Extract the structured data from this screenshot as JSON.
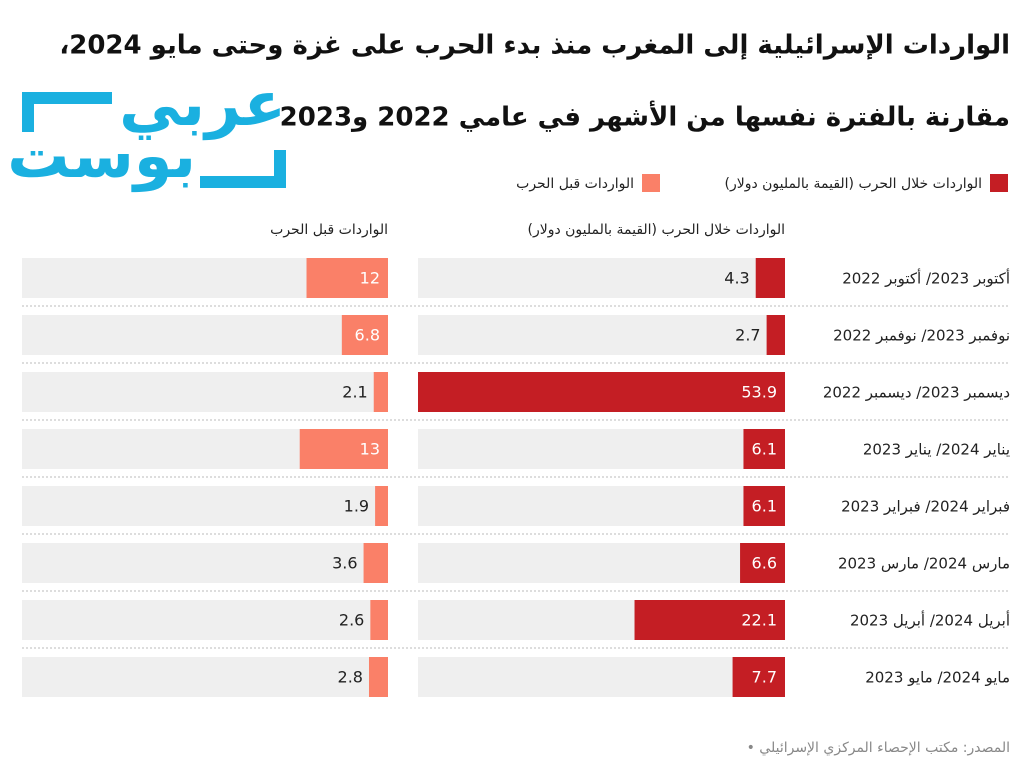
{
  "chart_data": {
    "type": "bar",
    "title": [
      "الواردات الإسرائيلية إلى المغرب منذ بدء الحرب على غزة وحتى مايو 2024،",
      "مقارنة بالفترة نفسها من الأشهر في عامي 2022 و2023"
    ],
    "logo": [
      "عربي",
      "بوست"
    ],
    "categories": [
      "أكتوبر 2023/ أكتوبر 2022",
      "نوفمبر 2023/ نوفمبر 2022",
      "ديسمبر 2023/ ديسمبر 2022",
      "يناير 2024/ يناير 2023",
      "فبراير 2024/ فبراير 2023",
      "مارس 2024/ مارس 2023",
      "أبريل 2024/ أبريل 2023",
      "مايو 2024/ مايو 2023"
    ],
    "series": [
      {
        "name": "الواردات خلال الحرب (القيمة بالمليون دولار)",
        "color": "#c41e24",
        "values": [
          4.3,
          2.7,
          53.9,
          6.1,
          6.1,
          6.6,
          22.1,
          7.7
        ]
      },
      {
        "name": "الواردات قبل الحرب",
        "color": "#fa8068",
        "values": [
          12,
          6.8,
          2.1,
          13,
          1.9,
          3.6,
          2.6,
          2.8
        ]
      }
    ],
    "xlim": [
      0,
      53.9
    ],
    "source": "المصدر: مكتب الإحصاء المركزي الإسرائيلي •"
  }
}
